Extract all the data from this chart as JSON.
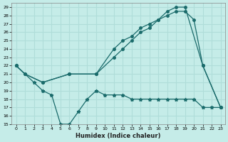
{
  "xlabel": "Humidex (Indice chaleur)",
  "background_color": "#c5ece8",
  "grid_color": "#b0ddd9",
  "line_color": "#1a6b6b",
  "xlim": [
    -0.5,
    23.5
  ],
  "ylim": [
    15,
    29.5
  ],
  "xticks": [
    0,
    1,
    2,
    3,
    4,
    5,
    6,
    7,
    8,
    9,
    10,
    11,
    12,
    13,
    14,
    15,
    16,
    17,
    18,
    19,
    20,
    21,
    22,
    23
  ],
  "yticks": [
    15,
    16,
    17,
    18,
    19,
    20,
    21,
    22,
    23,
    24,
    25,
    26,
    27,
    28,
    29
  ],
  "line1_x": [
    0,
    1,
    3,
    6,
    9,
    11,
    12,
    13,
    14,
    15,
    16,
    17,
    18,
    19,
    21,
    23
  ],
  "line1_y": [
    22,
    21,
    20,
    21,
    21,
    24,
    25,
    25.5,
    26.5,
    27,
    27.5,
    28.5,
    29,
    29,
    22,
    17
  ],
  "line2_x": [
    0,
    1,
    3,
    6,
    9,
    11,
    12,
    13,
    14,
    15,
    16,
    17,
    18,
    19,
    20,
    21,
    23
  ],
  "line2_y": [
    22,
    21,
    20,
    21,
    21,
    23,
    24,
    25,
    26,
    26.5,
    27.5,
    28,
    28.5,
    28.5,
    27.5,
    22,
    17
  ],
  "line3_x": [
    0,
    2,
    3,
    4,
    5,
    6,
    7,
    8,
    9,
    10,
    11,
    12,
    13,
    14,
    15,
    16,
    17,
    18,
    19,
    20,
    21,
    22,
    23
  ],
  "line3_y": [
    22,
    20,
    19,
    18.5,
    15,
    15,
    16.5,
    18,
    19,
    18.5,
    18.5,
    18.5,
    18,
    18,
    18,
    18,
    18,
    18,
    18,
    18,
    17,
    17,
    17
  ]
}
